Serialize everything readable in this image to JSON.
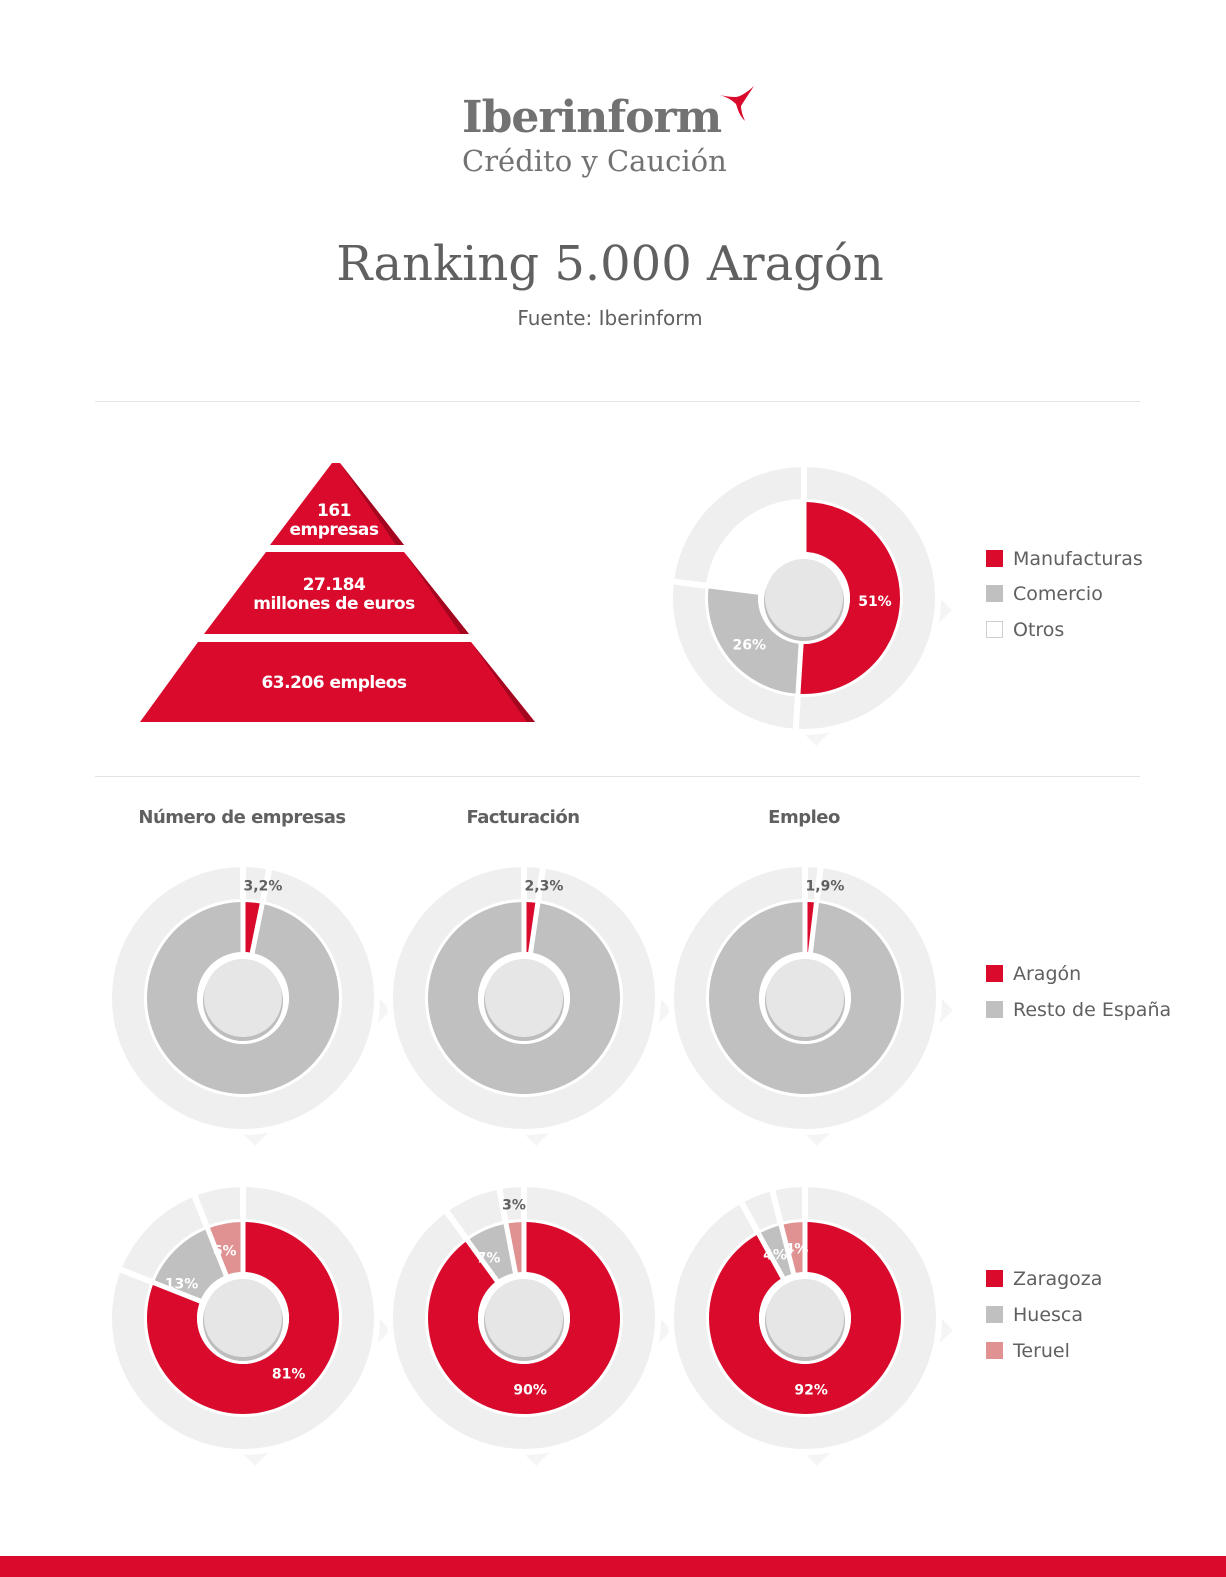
{
  "logo": {
    "name": "Iberinform",
    "sub": "Crédito y Caución",
    "accent": "#d90a2c"
  },
  "title": "Ranking 5.000 Aragón",
  "subtitle": "Fuente: Iberinform",
  "colors": {
    "red": "#d90a2c",
    "grey": "#c0c0c0",
    "pink": "#e09191",
    "white": "#ffffff",
    "ring": "#efefef",
    "hole": "#e6e6e6"
  },
  "pyramid": {
    "tiers": [
      {
        "line1": "161",
        "line2": "empresas"
      },
      {
        "line1": "27.184",
        "line2": "millones de euros"
      },
      {
        "line1": "63.206 empleos",
        "line2": ""
      }
    ]
  },
  "chart_data": [
    {
      "id": "sectores",
      "type": "pie",
      "categories": [
        "Manufacturas",
        "Comercio",
        "Otros"
      ],
      "values": [
        51,
        26,
        23
      ],
      "labels": [
        "51%",
        "26%",
        ""
      ],
      "colors": [
        "#d90a2c",
        "#c0c0c0",
        "#ffffff"
      ],
      "legend": [
        "Manufacturas",
        "Comercio",
        "Otros"
      ]
    },
    {
      "id": "empresas-espana",
      "type": "pie",
      "title": "Número de empresas",
      "categories": [
        "Aragón",
        "Resto de España"
      ],
      "values": [
        3.2,
        96.8
      ],
      "labels": [
        "3,2%",
        ""
      ],
      "colors": [
        "#d90a2c",
        "#c0c0c0"
      ]
    },
    {
      "id": "facturacion-espana",
      "type": "pie",
      "title": "Facturación",
      "categories": [
        "Aragón",
        "Resto de España"
      ],
      "values": [
        2.3,
        97.7
      ],
      "labels": [
        "2,3%",
        ""
      ],
      "colors": [
        "#d90a2c",
        "#c0c0c0"
      ]
    },
    {
      "id": "empleo-espana",
      "type": "pie",
      "title": "Empleo",
      "categories": [
        "Aragón",
        "Resto de España"
      ],
      "values": [
        1.9,
        98.1
      ],
      "labels": [
        "1,9%",
        ""
      ],
      "colors": [
        "#d90a2c",
        "#c0c0c0"
      ]
    },
    {
      "id": "empresas-provincias",
      "type": "pie",
      "categories": [
        "Zaragoza",
        "Huesca",
        "Teruel"
      ],
      "values": [
        81,
        13,
        6
      ],
      "labels": [
        "81%",
        "13%",
        "6%"
      ],
      "colors": [
        "#d90a2c",
        "#c0c0c0",
        "#e09191"
      ]
    },
    {
      "id": "facturacion-provincias",
      "type": "pie",
      "categories": [
        "Zaragoza",
        "Huesca",
        "Teruel"
      ],
      "values": [
        90,
        7,
        3
      ],
      "labels": [
        "90%",
        "7%",
        "3%"
      ],
      "colors": [
        "#d90a2c",
        "#c0c0c0",
        "#e09191"
      ]
    },
    {
      "id": "empleo-provincias",
      "type": "pie",
      "categories": [
        "Zaragoza",
        "Huesca",
        "Teruel"
      ],
      "values": [
        92,
        4,
        4
      ],
      "labels": [
        "92%",
        "4%",
        "4%"
      ],
      "colors": [
        "#d90a2c",
        "#c0c0c0",
        "#e09191"
      ]
    }
  ],
  "legends": {
    "sectores": [
      "Manufacturas",
      "Comercio",
      "Otros"
    ],
    "espana": [
      "Aragón",
      "Resto de España"
    ],
    "provincias": [
      "Zaragoza",
      "Huesca",
      "Teruel"
    ]
  }
}
